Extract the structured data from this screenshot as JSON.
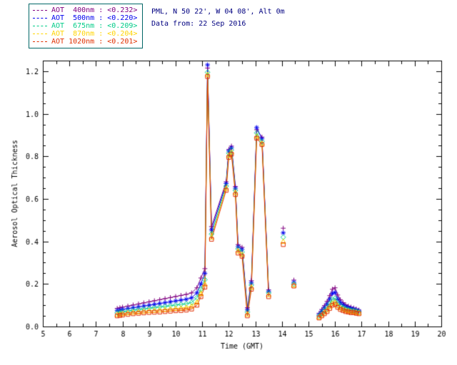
{
  "header": {
    "site_line": "PML, N 50 22', W 04 08', Alt 0m",
    "date_line": "Data from: 22 Sep 2016",
    "text_color": "#000080"
  },
  "legend": {
    "border_color": "#006666",
    "items": [
      {
        "label": "AOT  400nm : <0.232>",
        "color": "#800080"
      },
      {
        "label": "AOT  500nm : <0.220>",
        "color": "#0000ee"
      },
      {
        "label": "AOT  675nm : <0.209>",
        "color": "#00cc88"
      },
      {
        "label": "AOT  870nm : <0.204>",
        "color": "#ffd400"
      },
      {
        "label": "AOT 1020nm : <0.201>",
        "color": "#e03000"
      }
    ]
  },
  "chart_data": {
    "type": "line",
    "title": "",
    "xlabel": "Time (GMT)",
    "ylabel": "Aerosol Optical Thickness",
    "xlim": [
      5,
      20
    ],
    "ylim": [
      0,
      1.25
    ],
    "x_ticks": [
      5,
      6,
      7,
      8,
      9,
      10,
      11,
      12,
      13,
      14,
      15,
      16,
      17,
      18,
      19,
      20
    ],
    "y_ticks": [
      0.0,
      0.2,
      0.4,
      0.6,
      0.8,
      1.0,
      1.2
    ],
    "grid": false,
    "legend_position": "top-left-outside",
    "axis_color": "#000000",
    "x": [
      7.8,
      7.9,
      8.0,
      8.2,
      8.4,
      8.6,
      8.8,
      9.0,
      9.2,
      9.4,
      9.6,
      9.8,
      10.0,
      10.2,
      10.4,
      10.6,
      10.8,
      10.95,
      11.1,
      11.2,
      11.35,
      11.9,
      12.0,
      12.1,
      12.25,
      12.35,
      12.5,
      12.7,
      12.85,
      13.05,
      13.25,
      13.5,
      14.05,
      14.45,
      15.4,
      15.5,
      15.6,
      15.7,
      15.8,
      15.9,
      16.0,
      16.1,
      16.2,
      16.3,
      16.4,
      16.5,
      16.6,
      16.7,
      16.8,
      16.9
    ],
    "line_segments": [
      [
        0,
        31
      ],
      [
        34,
        49
      ]
    ],
    "series": [
      {
        "name": "AOT 400nm",
        "mean_label": "<0.232>",
        "color": "#800080",
        "marker": "plus",
        "values": [
          0.085,
          0.088,
          0.091,
          0.096,
          0.101,
          0.106,
          0.111,
          0.116,
          0.121,
          0.126,
          0.131,
          0.136,
          0.141,
          0.146,
          0.151,
          0.158,
          0.182,
          0.228,
          0.272,
          1.215,
          0.47,
          0.68,
          0.832,
          0.848,
          0.658,
          0.385,
          0.372,
          0.088,
          0.215,
          0.925,
          0.89,
          0.172,
          0.462,
          0.218,
          0.062,
          0.08,
          0.098,
          0.118,
          0.145,
          0.175,
          0.182,
          0.148,
          0.126,
          0.112,
          0.102,
          0.096,
          0.091,
          0.087,
          0.082,
          0.077
        ]
      },
      {
        "name": "AOT 500nm",
        "mean_label": "<0.220>",
        "color": "#0000ee",
        "marker": "asterisk",
        "values": [
          0.075,
          0.077,
          0.08,
          0.084,
          0.088,
          0.092,
          0.096,
          0.1,
          0.104,
          0.108,
          0.112,
          0.116,
          0.12,
          0.124,
          0.128,
          0.135,
          0.158,
          0.2,
          0.25,
          1.23,
          0.455,
          0.672,
          0.825,
          0.84,
          0.65,
          0.375,
          0.362,
          0.078,
          0.205,
          0.935,
          0.882,
          0.165,
          0.44,
          0.208,
          0.056,
          0.072,
          0.088,
          0.105,
          0.128,
          0.155,
          0.16,
          0.13,
          0.113,
          0.102,
          0.094,
          0.089,
          0.085,
          0.082,
          0.078,
          0.073
        ]
      },
      {
        "name": "AOT 675nm",
        "mean_label": "<0.209>",
        "color": "#00cc88",
        "marker": "diamond",
        "values": [
          0.065,
          0.067,
          0.07,
          0.073,
          0.077,
          0.08,
          0.083,
          0.086,
          0.089,
          0.092,
          0.095,
          0.098,
          0.101,
          0.104,
          0.107,
          0.113,
          0.135,
          0.175,
          0.22,
          1.195,
          0.435,
          0.66,
          0.815,
          0.83,
          0.64,
          0.365,
          0.35,
          0.068,
          0.195,
          0.91,
          0.87,
          0.158,
          0.42,
          0.2,
          0.05,
          0.063,
          0.076,
          0.09,
          0.108,
          0.128,
          0.132,
          0.11,
          0.098,
          0.09,
          0.084,
          0.08,
          0.077,
          0.075,
          0.072,
          0.068
        ]
      },
      {
        "name": "AOT 870nm",
        "mean_label": "<0.204>",
        "color": "#ffd400",
        "marker": "triangle",
        "values": [
          0.057,
          0.059,
          0.061,
          0.064,
          0.067,
          0.069,
          0.072,
          0.074,
          0.076,
          0.078,
          0.08,
          0.083,
          0.085,
          0.087,
          0.09,
          0.096,
          0.115,
          0.155,
          0.2,
          1.185,
          0.42,
          0.65,
          0.805,
          0.82,
          0.63,
          0.355,
          0.34,
          0.058,
          0.185,
          0.895,
          0.862,
          0.15,
          0.4,
          0.195,
          0.045,
          0.056,
          0.067,
          0.078,
          0.094,
          0.11,
          0.115,
          0.098,
          0.088,
          0.082,
          0.077,
          0.074,
          0.071,
          0.07,
          0.067,
          0.065
        ]
      },
      {
        "name": "AOT 1020nm",
        "mean_label": "<0.201>",
        "color": "#e03000",
        "marker": "square",
        "values": [
          0.05,
          0.052,
          0.054,
          0.057,
          0.06,
          0.062,
          0.064,
          0.066,
          0.067,
          0.068,
          0.07,
          0.072,
          0.074,
          0.075,
          0.077,
          0.082,
          0.1,
          0.14,
          0.185,
          1.175,
          0.41,
          0.64,
          0.795,
          0.81,
          0.62,
          0.345,
          0.33,
          0.05,
          0.175,
          0.885,
          0.855,
          0.14,
          0.385,
          0.19,
          0.04,
          0.05,
          0.06,
          0.07,
          0.085,
          0.1,
          0.105,
          0.09,
          0.08,
          0.075,
          0.07,
          0.068,
          0.065,
          0.065,
          0.062,
          0.06
        ]
      }
    ]
  }
}
